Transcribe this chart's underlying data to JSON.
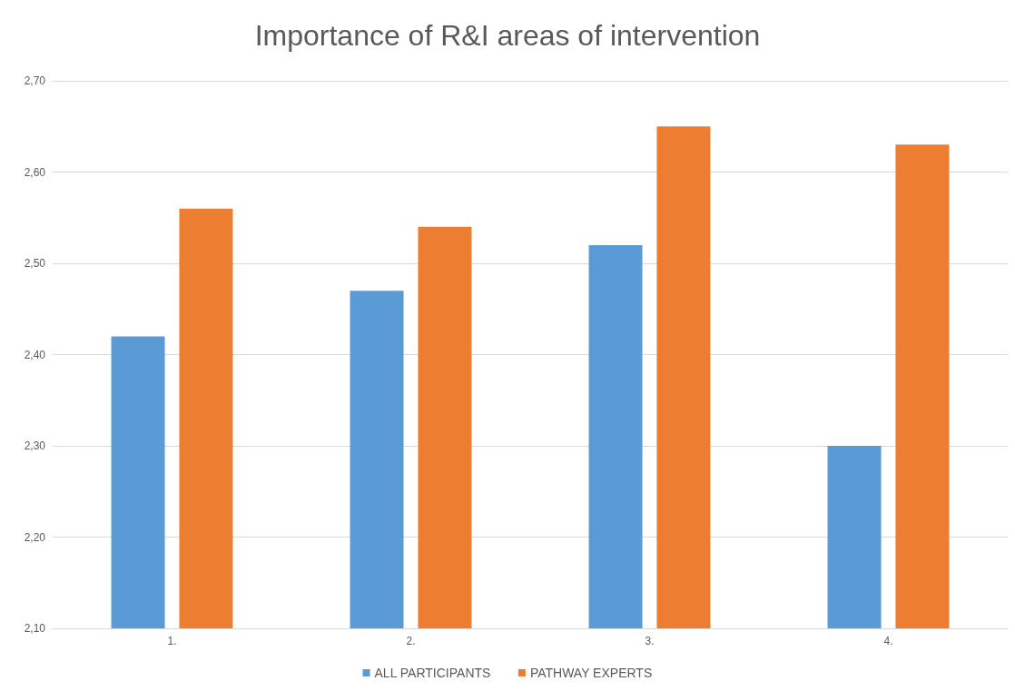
{
  "chart_data": {
    "type": "bar",
    "title": "Importance of R&I areas of intervention",
    "categories": [
      "1.",
      "2.",
      "3.",
      "4."
    ],
    "series": [
      {
        "name": "ALL PARTICIPANTS",
        "color": "#5b9bd5",
        "values": [
          2.42,
          2.47,
          2.52,
          2.3
        ]
      },
      {
        "name": "PATHWAY EXPERTS",
        "color": "#ed7d31",
        "values": [
          2.56,
          2.54,
          2.65,
          2.63
        ]
      }
    ],
    "ylim": [
      2.1,
      2.7
    ],
    "yticks": [
      {
        "value": 2.1,
        "label": "2,10"
      },
      {
        "value": 2.2,
        "label": "2,20"
      },
      {
        "value": 2.3,
        "label": "2,30"
      },
      {
        "value": 2.4,
        "label": "2,40"
      },
      {
        "value": 2.5,
        "label": "2,50"
      },
      {
        "value": 2.6,
        "label": "2,60"
      },
      {
        "value": 2.7,
        "label": "2,70"
      }
    ],
    "grid": "y",
    "legend": "bottom"
  }
}
